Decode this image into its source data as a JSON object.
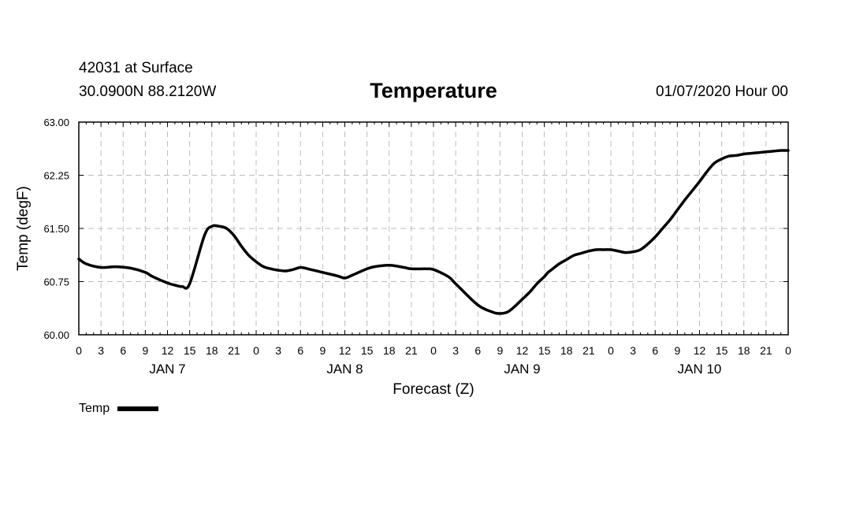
{
  "header": {
    "station": "42031 at Surface",
    "coords": "30.0900N 88.2120W",
    "title": "Temperature",
    "run": "01/07/2020 Hour 00"
  },
  "legend": {
    "label": "Temp",
    "color": "#000000"
  },
  "chart_data": {
    "type": "line",
    "title": "Temperature",
    "xlabel": "Forecast (Z)",
    "ylabel": "Temp (degF)",
    "ylim": [
      60.0,
      63.0
    ],
    "yticks": [
      "60.00",
      "60.75",
      "61.50",
      "62.25",
      "63.00"
    ],
    "xlim": [
      0,
      96
    ],
    "xtick_labels": [
      "0",
      "3",
      "6",
      "9",
      "12",
      "15",
      "18",
      "21",
      "0",
      "3",
      "6",
      "9",
      "12",
      "15",
      "18",
      "21",
      "0",
      "3",
      "6",
      "9",
      "12",
      "15",
      "18",
      "21",
      "0",
      "3",
      "6",
      "9",
      "12",
      "15",
      "18",
      "21",
      "0"
    ],
    "day_labels": [
      {
        "label": "JAN 7",
        "hour": 12
      },
      {
        "label": "JAN 8",
        "hour": 36
      },
      {
        "label": "JAN 9",
        "hour": 60
      },
      {
        "label": "JAN 10",
        "hour": 84
      }
    ],
    "grid": true,
    "series": [
      {
        "name": "Temp",
        "x": [
          0,
          1,
          3,
          5,
          7,
          9,
          10,
          12,
          13,
          14,
          15,
          17,
          18,
          19,
          20,
          21,
          22,
          23,
          24,
          25,
          26,
          27,
          28,
          29,
          30,
          31,
          33,
          35,
          36,
          37,
          39,
          40,
          42,
          44,
          45,
          47,
          48,
          50,
          51,
          54,
          56,
          57,
          58,
          59,
          60,
          61,
          62,
          63,
          63.5,
          64,
          65,
          66,
          67,
          68,
          69,
          70,
          71,
          72,
          73,
          74,
          75,
          76,
          77,
          78,
          79,
          80,
          81,
          82,
          83,
          84,
          85,
          86,
          87,
          88,
          89,
          90,
          91,
          92,
          93,
          94,
          95,
          96
        ],
        "y": [
          61.07,
          61.0,
          60.95,
          60.96,
          60.94,
          60.88,
          60.82,
          60.73,
          60.7,
          60.68,
          60.72,
          61.4,
          61.53,
          61.53,
          61.5,
          61.4,
          61.25,
          61.12,
          61.03,
          60.96,
          60.93,
          60.91,
          60.9,
          60.92,
          60.95,
          60.93,
          60.88,
          60.83,
          60.8,
          60.84,
          60.93,
          60.96,
          60.98,
          60.95,
          60.93,
          60.93,
          60.92,
          60.82,
          60.72,
          60.42,
          60.32,
          60.3,
          60.32,
          60.4,
          60.5,
          60.6,
          60.72,
          60.82,
          60.88,
          60.92,
          61.0,
          61.06,
          61.12,
          61.15,
          61.18,
          61.2,
          61.2,
          61.2,
          61.18,
          61.16,
          61.17,
          61.2,
          61.28,
          61.38,
          61.5,
          61.62,
          61.76,
          61.9,
          62.03,
          62.16,
          62.3,
          62.42,
          62.48,
          62.52,
          62.53,
          62.55,
          62.56,
          62.57,
          62.58,
          62.59,
          62.6,
          62.6
        ]
      }
    ]
  }
}
